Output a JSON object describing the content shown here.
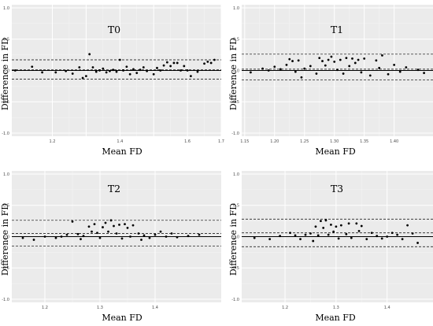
{
  "chart_data": [
    {
      "type": "scatter",
      "title": "T0",
      "xlabel": "Mean FD",
      "ylabel": "Difference in FD",
      "xlim": [
        1.08,
        1.7
      ],
      "ylim": [
        -1.05,
        1.05
      ],
      "xticks": [
        1.2,
        1.3,
        1.4,
        1.5,
        1.6,
        1.7
      ],
      "xtick_labels": [
        "1.2",
        "",
        "1.4",
        "",
        "1.6",
        "1.7"
      ],
      "yticks": [
        -1.0,
        -0.5,
        0.0,
        0.5,
        1.0
      ],
      "ytick_labels": [
        "-1.0",
        "-0.5",
        "0.0",
        "0.5",
        "1.0"
      ],
      "grid": true,
      "mean_line": 0.015,
      "limits": [
        -0.14,
        0.17
      ],
      "x": [
        1.09,
        1.14,
        1.17,
        1.21,
        1.24,
        1.26,
        1.28,
        1.29,
        1.3,
        1.31,
        1.32,
        1.33,
        1.34,
        1.35,
        1.36,
        1.37,
        1.38,
        1.39,
        1.4,
        1.41,
        1.42,
        1.43,
        1.44,
        1.45,
        1.46,
        1.47,
        1.48,
        1.5,
        1.51,
        1.52,
        1.53,
        1.54,
        1.55,
        1.56,
        1.57,
        1.58,
        1.59,
        1.6,
        1.61,
        1.63,
        1.65,
        1.66,
        1.67,
        1.68
      ],
      "y": [
        0.0,
        0.06,
        -0.03,
        -0.03,
        -0.01,
        -0.05,
        0.05,
        -0.12,
        -0.09,
        0.26,
        0.05,
        -0.02,
        0.0,
        0.03,
        -0.03,
        -0.01,
        0.01,
        -0.02,
        0.17,
        0.0,
        0.06,
        -0.06,
        0.02,
        -0.04,
        0.01,
        0.05,
        -0.01,
        -0.06,
        0.04,
        0.0,
        0.08,
        0.13,
        0.07,
        0.12,
        0.12,
        0.0,
        0.07,
        0.0,
        -0.09,
        -0.02,
        0.11,
        0.14,
        0.12,
        0.17
      ]
    },
    {
      "type": "scatter",
      "title": "T1",
      "xlabel": "Mean FD",
      "ylabel": "Difference in FD",
      "xlim": [
        1.145,
        1.465
      ],
      "ylim": [
        -1.05,
        1.05
      ],
      "xticks": [
        1.15,
        1.2,
        1.25,
        1.3,
        1.35,
        1.4
      ],
      "xtick_labels": [
        "1.15",
        "1.20",
        "1.25",
        "1.30",
        "1.35",
        "1.40"
      ],
      "yticks": [
        -1.0,
        -0.5,
        0.0,
        0.5,
        1.0
      ],
      "ytick_labels": [
        "-1.0",
        "-0.5",
        "0.0",
        "0.5",
        "1.0"
      ],
      "grid": true,
      "mean_line": 0.02,
      "limits": [
        -0.15,
        0.26
      ],
      "x": [
        1.16,
        1.18,
        1.19,
        1.2,
        1.21,
        1.22,
        1.225,
        1.23,
        1.235,
        1.24,
        1.245,
        1.25,
        1.26,
        1.27,
        1.275,
        1.28,
        1.285,
        1.29,
        1.295,
        1.3,
        1.305,
        1.31,
        1.315,
        1.32,
        1.325,
        1.33,
        1.335,
        1.34,
        1.345,
        1.35,
        1.36,
        1.37,
        1.375,
        1.38,
        1.39,
        1.4,
        1.41,
        1.42,
        1.44,
        1.45
      ],
      "y": [
        -0.03,
        0.03,
        0.0,
        0.06,
        0.02,
        0.09,
        0.18,
        0.15,
        -0.02,
        0.16,
        -0.11,
        0.03,
        0.07,
        -0.05,
        0.2,
        0.15,
        0.08,
        0.17,
        0.22,
        0.14,
        0.01,
        0.17,
        -0.05,
        0.2,
        0.07,
        0.19,
        0.12,
        0.17,
        -0.03,
        0.19,
        -0.08,
        0.16,
        0.04,
        0.24,
        -0.06,
        0.09,
        -0.02,
        0.05,
        0.01,
        -0.04
      ]
    },
    {
      "type": "scatter",
      "title": "T2",
      "xlabel": "Mean FD",
      "ylabel": "Difference in FD",
      "xlim": [
        1.14,
        1.52
      ],
      "ylim": [
        -1.05,
        1.05
      ],
      "xticks": [
        1.2,
        1.3,
        1.4
      ],
      "xtick_labels": [
        "1.2",
        "1.3",
        "1.4"
      ],
      "yticks": [
        -1.0,
        -0.5,
        0.0,
        0.5,
        1.0
      ],
      "ytick_labels": [
        "-1.0",
        "-0.5",
        "0.0",
        "0.5",
        "1.0"
      ],
      "grid": true,
      "mean_line": 0.05,
      "limits": [
        -0.15,
        0.26
      ],
      "x": [
        1.16,
        1.18,
        1.2,
        1.22,
        1.23,
        1.24,
        1.25,
        1.26,
        1.265,
        1.27,
        1.28,
        1.285,
        1.29,
        1.295,
        1.3,
        1.305,
        1.31,
        1.315,
        1.32,
        1.325,
        1.33,
        1.335,
        1.34,
        1.345,
        1.35,
        1.355,
        1.36,
        1.37,
        1.375,
        1.38,
        1.39,
        1.4,
        1.41,
        1.42,
        1.43,
        1.44,
        1.46,
        1.48
      ],
      "y": [
        -0.02,
        -0.05,
        0.0,
        -0.02,
        0.0,
        0.03,
        0.24,
        0.04,
        -0.04,
        0.01,
        0.16,
        0.08,
        0.2,
        0.06,
        -0.02,
        0.15,
        0.22,
        0.08,
        0.26,
        0.17,
        0.05,
        0.19,
        -0.03,
        0.2,
        0.14,
        0.0,
        0.18,
        0.05,
        -0.05,
        0.02,
        -0.02,
        0.03,
        0.08,
        0.0,
        0.05,
        -0.01,
        0.01,
        0.03
      ]
    },
    {
      "type": "scatter",
      "title": "T3",
      "xlabel": "Mean FD",
      "ylabel": "Difference in FD",
      "xlim": [
        1.115,
        1.49
      ],
      "ylim": [
        -1.05,
        1.05
      ],
      "xticks": [
        1.2,
        1.3,
        1.4
      ],
      "xtick_labels": [
        "1.2",
        "1.3",
        "1.4"
      ],
      "yticks": [
        -1.0,
        -0.5,
        0.0,
        0.5,
        1.0
      ],
      "ytick_labels": [
        "-1.0",
        "-0.5",
        "0.0",
        "0.5",
        "1.0"
      ],
      "grid": true,
      "mean_line": 0.06,
      "limits": [
        -0.16,
        0.28
      ],
      "x": [
        1.14,
        1.17,
        1.19,
        1.21,
        1.22,
        1.23,
        1.24,
        1.25,
        1.255,
        1.26,
        1.265,
        1.27,
        1.275,
        1.28,
        1.285,
        1.29,
        1.295,
        1.3,
        1.305,
        1.31,
        1.32,
        1.325,
        1.33,
        1.34,
        1.345,
        1.35,
        1.36,
        1.37,
        1.38,
        1.39,
        1.4,
        1.41,
        1.42,
        1.43,
        1.44,
        1.45,
        1.46
      ],
      "y": [
        -0.02,
        -0.04,
        0.01,
        0.06,
        0.02,
        -0.04,
        0.03,
        0.05,
        -0.07,
        0.16,
        0.02,
        0.25,
        0.14,
        0.26,
        0.03,
        0.19,
        0.08,
        0.16,
        -0.03,
        0.18,
        0.04,
        0.21,
        -0.02,
        0.21,
        0.09,
        0.17,
        -0.04,
        0.06,
        0.01,
        -0.03,
        0.0,
        0.06,
        0.03,
        -0.04,
        0.18,
        0.05,
        -0.1
      ]
    }
  ]
}
